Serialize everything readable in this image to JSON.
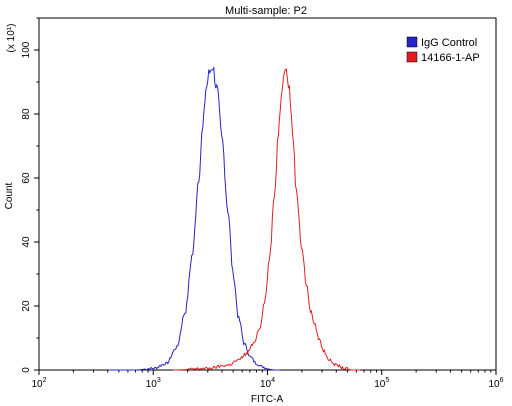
{
  "chart_data": {
    "type": "line",
    "title": "Multi-sample: P2",
    "xlabel": "FITC-A",
    "ylabel": "Count",
    "y_multiplier": "(x 10¹)",
    "xscale": "log",
    "xlim": [
      100,
      1000000
    ],
    "ylim": [
      0,
      110
    ],
    "x_ticks": [
      100,
      1000,
      10000,
      100000,
      1000000
    ],
    "x_tick_labels": [
      {
        "base": "10",
        "exp": "2"
      },
      {
        "base": "10",
        "exp": "3"
      },
      {
        "base": "10",
        "exp": "4"
      },
      {
        "base": "10",
        "exp": "5"
      },
      {
        "base": "10",
        "exp": "6"
      }
    ],
    "y_ticks": [
      0,
      20,
      40,
      60,
      80,
      100
    ],
    "y_tick_labels": [
      "0",
      "20",
      "40",
      "60",
      "80",
      "100"
    ],
    "legend_position": "top-right",
    "series": [
      {
        "name": "IgG Control",
        "color": "#2424c8",
        "x": [
          400,
          700,
          1000,
          1300,
          1600,
          1900,
          2200,
          2500,
          2700,
          2900,
          3100,
          3300,
          3600,
          4000,
          4500,
          5000,
          5600,
          6300,
          7100,
          8000,
          9000,
          10000,
          11500,
          13000
        ],
        "y": [
          0,
          0,
          0.5,
          2,
          7,
          18,
          36,
          60,
          75,
          88,
          93,
          95,
          88,
          72,
          50,
          30,
          16,
          8,
          4,
          2,
          1,
          0.5,
          0,
          0
        ]
      },
      {
        "name": "14166-1-AP",
        "color": "#e02020",
        "x": [
          1500,
          3000,
          4500,
          5500,
          6500,
          7500,
          8500,
          9500,
          10500,
          11500,
          12500,
          13300,
          14000,
          14700,
          15500,
          16500,
          18000,
          20000,
          22000,
          24000,
          26000,
          28000,
          31000,
          35000,
          40000,
          47000,
          55000,
          65000
        ],
        "y": [
          0,
          0.5,
          1.5,
          3,
          5,
          8,
          13,
          22,
          36,
          55,
          75,
          88,
          95,
          93,
          88,
          75,
          55,
          38,
          26,
          18,
          14,
          10,
          6,
          3,
          1.5,
          0.5,
          0,
          0
        ]
      }
    ]
  }
}
